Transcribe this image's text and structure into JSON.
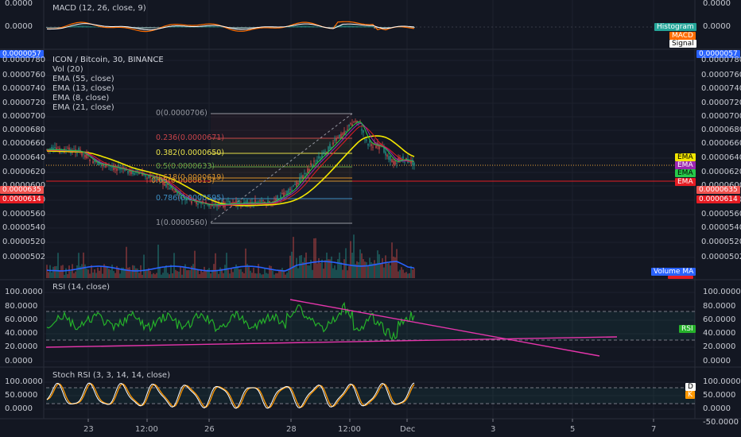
{
  "macd": {
    "title": "MACD (12, 26, close, 9)",
    "left_ticks": [
      "0.0000",
      "0.0000"
    ],
    "right_ticks": [
      "0.0000",
      "0.0000"
    ],
    "legend": [
      "Histogram",
      "MACD",
      "Signal"
    ]
  },
  "price": {
    "top_tag": "0.0000057",
    "title": "ICON / Bitcoin, 30, BINANCE",
    "studies": [
      "Vol (20)",
      "EMA (55, close)",
      "EMA (13, close)",
      "EMA (8, close)",
      "EMA (21, close)"
    ],
    "ticks": [
      "0.0000780",
      "0.0000760",
      "0.0000740",
      "0.0000720",
      "0.0000700",
      "0.0000680",
      "0.0000660",
      "0.0000640",
      "0.0000620",
      "0.0000600",
      "0.0000580",
      "0.0000560",
      "0.0000540",
      "0.0000520",
      "0.0000502"
    ],
    "price_tag": "0.0000635",
    "support_tag": "0.0000614",
    "fib": [
      {
        "label": "0(0.0000706)",
        "color": "#9598a1"
      },
      {
        "label": "0.236(0.0000671)",
        "color": "#c7434a"
      },
      {
        "label": "0.382(0.0000650)",
        "color": "#e8e14a"
      },
      {
        "label": "0.5(0.0000633)",
        "color": "#63a34a"
      },
      {
        "label": "0.618(0.0000619)",
        "color": "#d58f2a"
      },
      {
        "label": "0.65(0.0000615)",
        "color": "#d58f2a"
      },
      {
        "label": "0.786(0.0000595)",
        "color": "#3d8fc4"
      },
      {
        "label": "1(0.0000560)",
        "color": "#9598a1"
      }
    ],
    "ema_tags": [
      {
        "label": "EMA",
        "color": "#f2e600",
        "text_color": "#000000"
      },
      {
        "label": "EMA",
        "color": "#9c27b0",
        "text_color": "#ffffff"
      },
      {
        "label": "EMA",
        "color": "#26c94a",
        "text_color": "#000000"
      },
      {
        "label": "EMA",
        "color": "#e51c23",
        "text_color": "#ffffff"
      }
    ],
    "volume_ma_label": "Volume MA"
  },
  "rsi": {
    "title": "RSI (14, close)",
    "ticks": [
      "100.0000",
      "80.0000",
      "60.0000",
      "40.0000",
      "20.0000",
      "0.0000"
    ],
    "tag": "RSI"
  },
  "stoch": {
    "title": "Stoch RSI (3, 3, 14, 14, close)",
    "ticks": [
      "100.0000",
      "50.0000",
      "0.0000",
      "-50.0000"
    ],
    "tag_d": "D",
    "tag_k": "K"
  },
  "time_axis": [
    "23",
    "12:00",
    "26",
    "28",
    "12:00",
    "Dec",
    "3",
    "5",
    "7"
  ]
}
